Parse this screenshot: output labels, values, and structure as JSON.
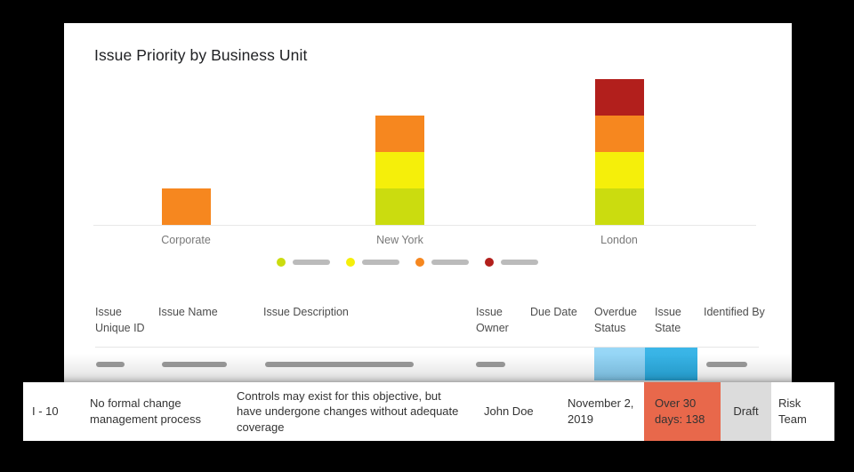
{
  "card": {
    "title": "Issue Priority by Business Unit"
  },
  "chart_data": {
    "type": "bar",
    "stacked": true,
    "title": "Issue Priority by Business Unit",
    "categories": [
      "Corporate",
      "New York",
      "London"
    ],
    "series": [
      {
        "name": "priority-level-1",
        "color": "#cbdc0f",
        "values": [
          0,
          1,
          1
        ],
        "label_redacted": true
      },
      {
        "name": "priority-level-2",
        "color": "#f5ef0a",
        "values": [
          0,
          1,
          1
        ],
        "label_redacted": true
      },
      {
        "name": "priority-level-3",
        "color": "#f6871f",
        "values": [
          1,
          1,
          1
        ],
        "label_redacted": true
      },
      {
        "name": "priority-level-4",
        "color": "#b21f1c",
        "values": [
          0,
          0,
          1
        ],
        "label_redacted": true
      }
    ],
    "xlabel": "",
    "ylabel": "",
    "ylim": [
      0,
      4
    ],
    "grid": false,
    "legend_position": "bottom",
    "legend_labels_redacted": true
  },
  "table": {
    "headers": [
      "Issue Unique ID",
      "Issue Name",
      "Issue Description",
      "Issue Owner",
      "Due Date",
      "Overdue Status",
      "Issue State",
      "Identified By"
    ],
    "redacted_row": {
      "note": "row content shown as gray placeholder bars",
      "overdue_status_cell_color": "#8fd2f4",
      "issue_state_cell_color": "#2fb0e4"
    },
    "highlighted_row": {
      "issue_unique_id": "I - 10",
      "issue_name": "No formal change management process",
      "issue_description": "Controls may exist for this objective, but have undergone changes without adequate coverage",
      "issue_owner": "John Doe",
      "due_date": "November 2, 2019",
      "overdue_status": "Over 30 days: 138",
      "issue_state": "Draft",
      "identified_by": "Risk Team"
    }
  },
  "colors": {
    "background": "#000000",
    "card": "#ffffff",
    "overdue_status_badge": "#e8684b",
    "issue_state_badge": "#dcdcdc",
    "placeholder_pill": "#9c9c9c",
    "legend_pill": "#bbbbbb"
  }
}
